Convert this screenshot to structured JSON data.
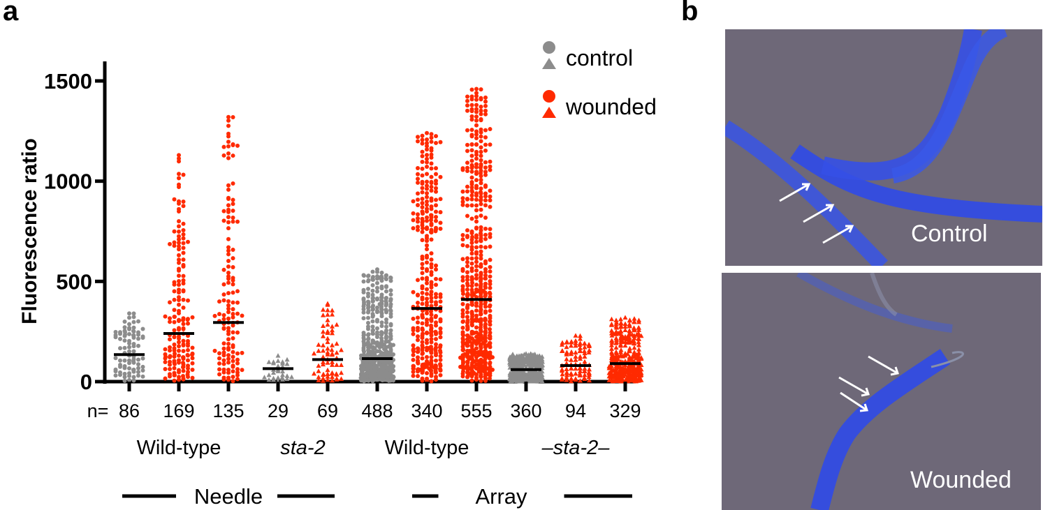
{
  "panels": {
    "a": "a",
    "b": "b"
  },
  "chart_data": {
    "type": "scatter",
    "ylabel": "Fluorescence ratio",
    "ylim": [
      0,
      1500
    ],
    "yticks": [
      0,
      500,
      1000,
      1500
    ],
    "n_prefix": "n=",
    "columns": [
      {
        "n": "86",
        "condition": "control",
        "marker": "circle",
        "median": 135,
        "max": 340
      },
      {
        "n": "169",
        "condition": "wounded",
        "marker": "circle",
        "median": 240,
        "max": 1130
      },
      {
        "n": "135",
        "condition": "wounded",
        "marker": "circle",
        "median": 295,
        "max": 1320
      },
      {
        "n": "29",
        "condition": "control",
        "marker": "triangle",
        "median": 65,
        "max": 130
      },
      {
        "n": "69",
        "condition": "wounded",
        "marker": "triangle",
        "median": 110,
        "max": 390
      },
      {
        "n": "488",
        "condition": "control",
        "marker": "circle",
        "median": 115,
        "max": 560
      },
      {
        "n": "340",
        "condition": "wounded",
        "marker": "circle",
        "median": 365,
        "max": 1240
      },
      {
        "n": "555",
        "condition": "wounded",
        "marker": "circle",
        "median": 410,
        "max": 1460
      },
      {
        "n": "360",
        "condition": "control",
        "marker": "triangle",
        "median": 60,
        "max": 140
      },
      {
        "n": "94",
        "condition": "wounded",
        "marker": "triangle",
        "median": 80,
        "max": 230
      },
      {
        "n": "329",
        "condition": "wounded",
        "marker": "triangle",
        "median": 90,
        "max": 320
      }
    ],
    "groups": [
      {
        "label": "Wild-type",
        "italic": false,
        "columns": [
          0,
          2
        ]
      },
      {
        "label": "sta-2",
        "italic": true,
        "columns": [
          3,
          4
        ]
      },
      {
        "label": "Wild-type",
        "italic": false,
        "columns": [
          5,
          7
        ]
      },
      {
        "label": "–sta-2–",
        "italic": true,
        "columns": [
          8,
          10
        ]
      }
    ],
    "methods": [
      {
        "label": "Needle",
        "columns": [
          0,
          4
        ]
      },
      {
        "label": "Array",
        "columns": [
          5,
          10
        ]
      }
    ],
    "legend": {
      "placement": "top-right",
      "entries": [
        {
          "label": "control",
          "color": "#8c8c8c"
        },
        {
          "label": "wounded",
          "color": "#ff2a00"
        }
      ]
    },
    "colors": {
      "control": "#8c8c8c",
      "wounded": "#ff2a00",
      "median": "#000000"
    }
  },
  "images": {
    "control_label": "Control",
    "wounded_label": "Wounded"
  }
}
